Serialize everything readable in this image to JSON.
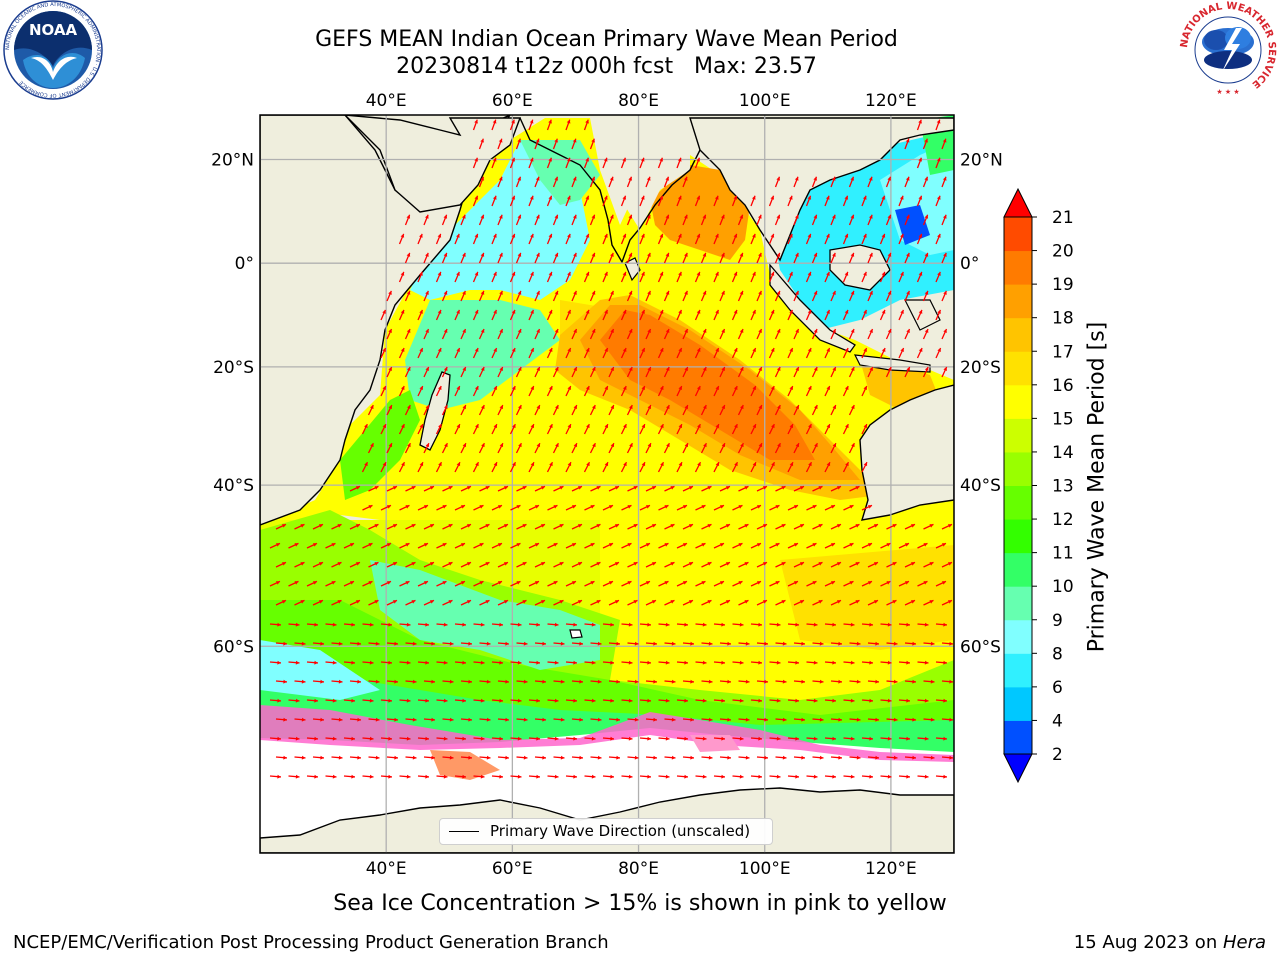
{
  "title": {
    "line1": "GEFS MEAN Indian Ocean Primary Wave Mean Period",
    "line2": "20230814 t12z 000h fcst   Max: 23.57"
  },
  "logos": {
    "left": {
      "name": "noaa-logo",
      "text": "NOAA",
      "ring_text": "NATIONAL OCEANIC AND ATMOSPHERIC ADMINISTRATION · U.S. DEPARTMENT OF COMMERCE"
    },
    "right": {
      "name": "nws-logo",
      "ring_text": "NATIONAL WEATHER SERVICE"
    }
  },
  "axes": {
    "lon_labels": [
      "40°E",
      "60°E",
      "80°E",
      "100°E",
      "120°E"
    ],
    "lon_values": [
      40,
      60,
      80,
      100,
      120
    ],
    "lat_labels": [
      "20°N",
      "0°",
      "20°S",
      "40°S",
      "60°S"
    ],
    "lat_values": [
      20,
      0,
      -20,
      -40,
      -60
    ],
    "lon_range": [
      20,
      130
    ],
    "lat_range": [
      -75,
      28
    ]
  },
  "colorbar": {
    "label": "Primary Wave Mean Period [s]",
    "tick_labels": [
      "2",
      "4",
      "6",
      "8",
      "9",
      "10",
      "11",
      "12",
      "13",
      "14",
      "15",
      "16",
      "17",
      "18",
      "19",
      "20",
      "21"
    ],
    "levels": [
      2,
      4,
      6,
      8,
      9,
      10,
      11,
      12,
      13,
      14,
      15,
      16,
      17,
      18,
      19,
      20,
      21
    ],
    "colors": [
      "#0050ff",
      "#00c8ff",
      "#30f0ff",
      "#80ffff",
      "#66ffb0",
      "#33ff66",
      "#33ff00",
      "#66ff00",
      "#99ff00",
      "#ccff00",
      "#ffff00",
      "#ffe100",
      "#ffc400",
      "#ffa000",
      "#ff7b00",
      "#ff4b00"
    ],
    "under_color": "#0000ff",
    "over_color": "#ff0000",
    "extend": "both"
  },
  "legend": {
    "label": "Primary Wave Direction (unscaled)"
  },
  "caption": "Sea Ice Concentration > 15% is shown in pink to yellow",
  "footer": {
    "left": "NCEP/EMC/Verification Post Processing Product Generation Branch",
    "right_prefix": "15 Aug 2023 on ",
    "right_host": "Hera"
  },
  "map_colors": {
    "land": "#efeedd",
    "sea_ice": "#ffffff",
    "arrow": "#ff0000"
  }
}
